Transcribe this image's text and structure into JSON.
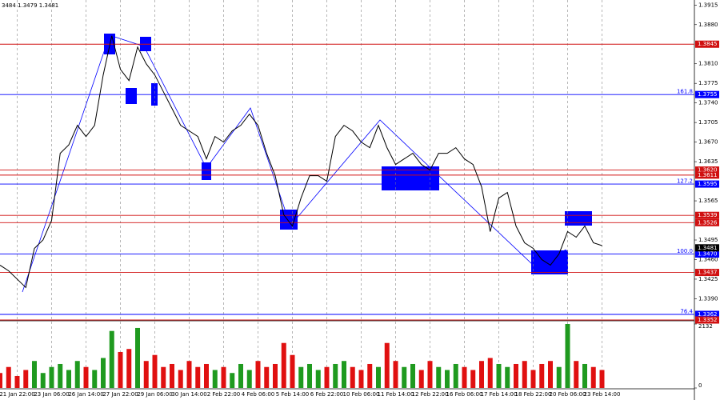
{
  "chart_data": {
    "type": "line",
    "info": "3484 1.3479 1.3481",
    "categories": [
      null,
      null,
      "21 Jan 22:00",
      null,
      null,
      null,
      "23 Jan 06:00",
      null,
      null,
      null,
      "26 Jan 14:00",
      null,
      null,
      null,
      "27 Jan 22:00",
      null,
      null,
      null,
      "29 Jan 06:00",
      null,
      null,
      null,
      "30 Jan 14:00",
      null,
      null,
      null,
      "2 Feb 22:00",
      null,
      null,
      null,
      "4 Feb 06:00",
      null,
      null,
      null,
      "5 Feb 14:00",
      null,
      null,
      null,
      "6 Feb 22:00",
      null,
      null,
      null,
      "10 Feb 06:00",
      null,
      null,
      null,
      "11 Feb 14:00",
      null,
      null,
      null,
      "12 Feb 22:00",
      null,
      null,
      null,
      "16 Feb 06:00",
      null,
      null,
      null,
      "17 Feb 14:00",
      null,
      null,
      null,
      "18 Feb 22:00",
      null,
      null,
      null,
      "20 Feb 06:00",
      null,
      null,
      null,
      "23 Feb 14:00"
    ],
    "series": [
      {
        "color": "#000000",
        "values": [
          1.345,
          1.344,
          1.3425,
          1.341,
          1.348,
          1.3495,
          1.353,
          1.365,
          1.3665,
          1.37,
          1.368,
          1.37,
          1.379,
          1.386,
          1.38,
          1.378,
          1.384,
          1.381,
          1.379,
          1.376,
          1.373,
          1.37,
          1.369,
          1.368,
          1.364,
          1.368,
          1.367,
          1.369,
          1.37,
          1.372,
          1.37,
          1.365,
          1.361,
          1.354,
          1.352,
          1.357,
          1.361,
          1.361,
          1.36,
          1.368,
          1.37,
          1.369,
          1.367,
          1.366,
          1.37,
          1.366,
          1.363,
          1.364,
          1.365,
          1.363,
          1.362,
          1.365,
          1.365,
          1.366,
          1.364,
          1.363,
          1.359,
          1.351,
          1.357,
          1.358,
          1.352,
          1.349,
          1.348,
          1.346,
          1.345,
          1.347,
          1.351,
          1.35,
          1.352,
          1.349,
          1.3485
        ]
      }
    ],
    "ylim": [
      1.3352,
      1.3924
    ],
    "yticks": [
      1.3915,
      {
        "value": 1.388,
        "label": "1.3880"
      },
      {
        "value": 1.381,
        "label": "1.3810"
      },
      1.3775,
      {
        "value": 1.374,
        "label": "1.3740"
      },
      1.3705,
      {
        "value": 1.367,
        "label": "1.3670"
      },
      1.3635,
      1.3565,
      1.3495,
      {
        "value": 1.346,
        "label": "1.3460"
      },
      1.3425,
      {
        "value": 1.339,
        "label": "1.3390"
      }
    ],
    "last": 1.3481,
    "levels": [
      {
        "value": 1.3845,
        "color": "#d01010"
      },
      {
        "value": 1.3755,
        "color": "#0000ff",
        "fib": "161.8"
      },
      {
        "value": 1.362,
        "label": "1.3620",
        "color": "#d01010"
      },
      {
        "value": 1.3611,
        "color": "#d01010"
      },
      {
        "value": 1.3595,
        "color": "#0000ff",
        "fib": "127.2"
      },
      {
        "value": 1.3539,
        "color": "#d01010"
      },
      {
        "value": 1.3526,
        "color": "#d01010"
      },
      {
        "value": 1.347,
        "label": "1.3470",
        "color": "#0000ff",
        "fib": "100.0"
      },
      {
        "value": 1.3437,
        "color": "#d01010"
      },
      {
        "value": 1.3362,
        "color": "#0000ff",
        "fib": "76.4"
      },
      {
        "value": 1.3352,
        "color": "#d01010"
      }
    ],
    "volume": {
      "up_color": "#1f9a1f",
      "down_color": "#e01010",
      "ylim": [
        0,
        2132
      ],
      "yticks": [
        2132,
        0
      ],
      "values": [
        500,
        700,
        400,
        600,
        900,
        500,
        700,
        800,
        600,
        900,
        700,
        600,
        1000,
        1900,
        1200,
        1300,
        2000,
        900,
        1100,
        700,
        800,
        600,
        900,
        700,
        800,
        600,
        700,
        500,
        800,
        600,
        900,
        700,
        800,
        1500,
        1100,
        700,
        800,
        600,
        700,
        800,
        900,
        700,
        600,
        800,
        700,
        1500,
        900,
        700,
        800,
        600,
        900,
        700,
        600,
        800,
        700,
        600,
        900,
        1000,
        800,
        700,
        800,
        900,
        600,
        800,
        900,
        700,
        2132,
        900,
        800,
        700,
        600
      ]
    }
  }
}
